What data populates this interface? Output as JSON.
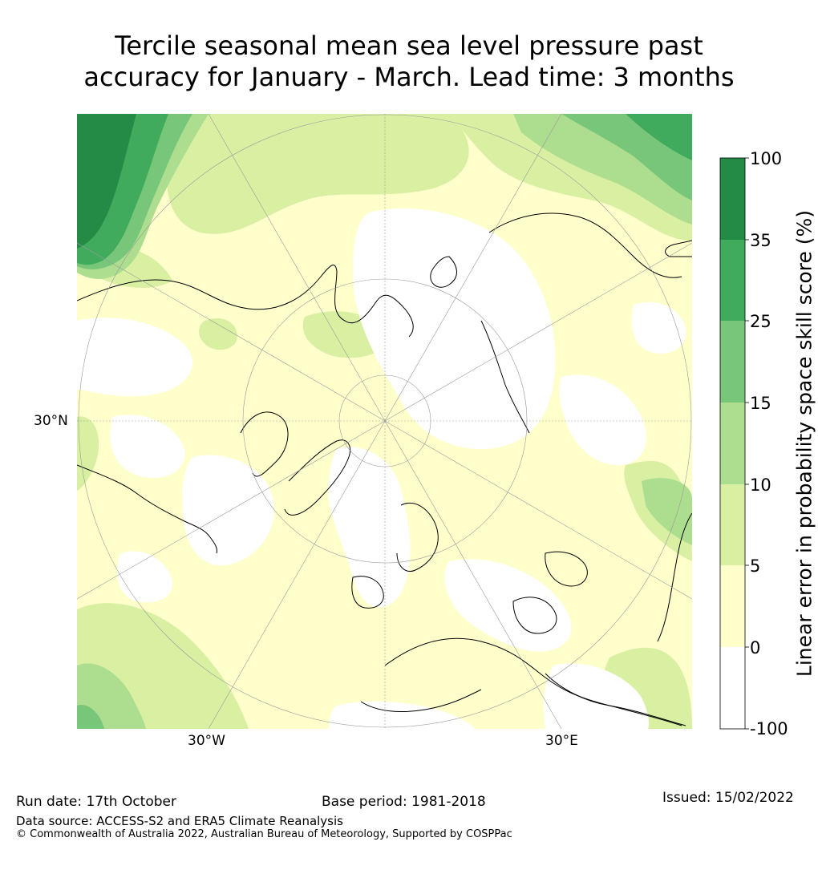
{
  "title": {
    "line1": "Tercile seasonal mean sea level pressure past",
    "line2": "accuracy for January - March. Lead time: 3 months"
  },
  "map": {
    "lat_label": "30°N",
    "lon_labels": [
      "30°W",
      "30°E"
    ]
  },
  "colorbar": {
    "label": "Linear error in probability space skill score (%)",
    "ticks": [
      "100",
      "35",
      "25",
      "15",
      "10",
      "5",
      "0",
      "-100"
    ],
    "colors": [
      "#238b45",
      "#41ab5d",
      "#78c679",
      "#addd8e",
      "#d9f0a3",
      "#ffffcc",
      "#ffffff"
    ]
  },
  "footer": {
    "run_date": "Run date: 17th October",
    "base_period": "Base period: 1981-2018",
    "issued": "Issued: 15/02/2022",
    "data_source": "Data source: ACCESS-S2 and ERA5 Climate Reanalysis",
    "copyright": "© Commonwealth of Australia 2022, Australian Bureau of Meteorology, Supported by COSPPac"
  }
}
